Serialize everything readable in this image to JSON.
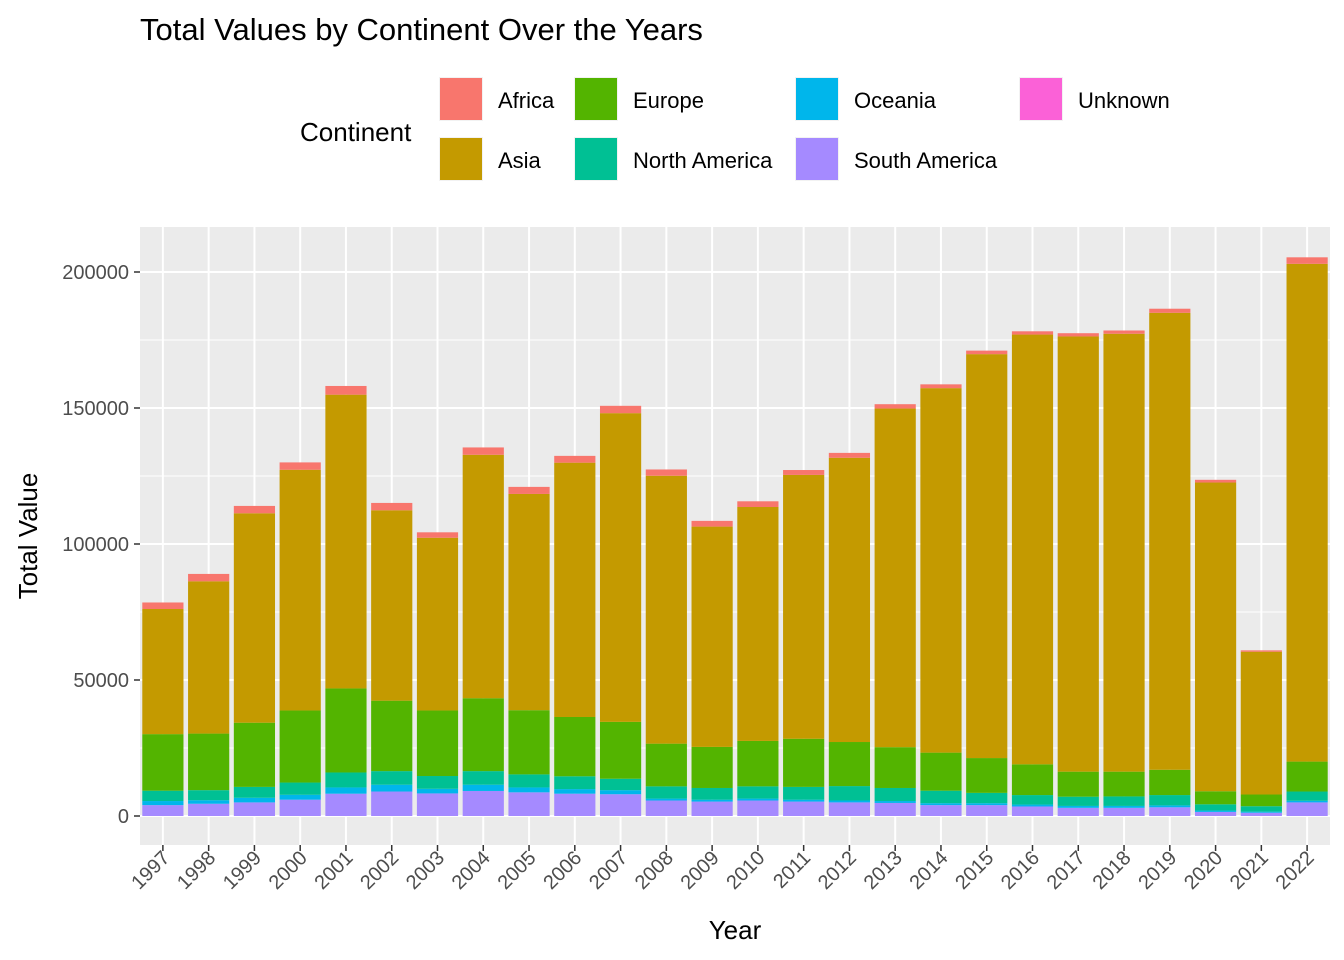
{
  "chart_data": {
    "type": "bar",
    "stacked": true,
    "title": "Total Values by Continent Over the Years",
    "xlabel": "Year",
    "ylabel": "Total Value",
    "ylim": [
      0,
      210000
    ],
    "yticks": [
      0,
      50000,
      100000,
      150000,
      200000
    ],
    "ytick_labels": [
      "0",
      "50000",
      "100000",
      "150000",
      "200000"
    ],
    "grid": true,
    "legend_title": "Continent",
    "legend_position": "top",
    "categories": [
      "1997",
      "1998",
      "1999",
      "2000",
      "2001",
      "2002",
      "2003",
      "2004",
      "2005",
      "2006",
      "2007",
      "2008",
      "2009",
      "2010",
      "2011",
      "2012",
      "2013",
      "2014",
      "2015",
      "2016",
      "2017",
      "2018",
      "2019",
      "2020",
      "2021",
      "2022"
    ],
    "series": [
      {
        "name": "South America",
        "color": "#A58AFF",
        "values": [
          4000,
          4500,
          5000,
          6000,
          8200,
          9000,
          8300,
          9200,
          8700,
          8200,
          8000,
          5700,
          5300,
          5700,
          5300,
          5000,
          4800,
          4000,
          4000,
          3500,
          3000,
          3000,
          3200,
          1500,
          1200,
          5000
        ]
      },
      {
        "name": "Oceania",
        "color": "#00B6EB",
        "values": [
          1500,
          1300,
          1700,
          1800,
          2300,
          2500,
          1700,
          2300,
          1800,
          1700,
          1500,
          700,
          700,
          700,
          700,
          700,
          700,
          700,
          700,
          700,
          700,
          700,
          700,
          500,
          400,
          600
        ]
      },
      {
        "name": "North America",
        "color": "#00C094",
        "values": [
          3800,
          3700,
          4000,
          4500,
          5500,
          5000,
          4700,
          5000,
          4800,
          4700,
          4200,
          4500,
          4300,
          4500,
          4700,
          5300,
          4800,
          4600,
          3800,
          3500,
          3400,
          3500,
          3800,
          2300,
          2000,
          3400
        ]
      },
      {
        "name": "Europe",
        "color": "#53B400",
        "values": [
          20800,
          20800,
          23600,
          26500,
          30900,
          25900,
          24100,
          26800,
          23600,
          21800,
          20900,
          15700,
          15100,
          16700,
          17700,
          16200,
          15000,
          14000,
          12800,
          11300,
          9200,
          9100,
          9300,
          4800,
          4300,
          11000
        ]
      },
      {
        "name": "Asia",
        "color": "#C49A00",
        "values": [
          46000,
          56000,
          77000,
          88500,
          108000,
          70000,
          63500,
          89500,
          79500,
          93500,
          113500,
          98500,
          81000,
          86000,
          97000,
          104500,
          124500,
          134000,
          148500,
          158000,
          160000,
          161000,
          168000,
          113500,
          52500,
          183000
        ]
      },
      {
        "name": "Africa",
        "color": "#F8766D",
        "values": [
          2400,
          2700,
          2700,
          2700,
          3200,
          2700,
          2000,
          2700,
          2600,
          2500,
          2700,
          2300,
          2100,
          2100,
          1800,
          1800,
          1600,
          1400,
          1300,
          1200,
          1200,
          1200,
          1500,
          1000,
          500,
          2400
        ]
      },
      {
        "name": "Unknown",
        "color": "#FB61D7",
        "values": [
          0,
          0,
          0,
          0,
          0,
          0,
          0,
          0,
          0,
          0,
          0,
          0,
          0,
          0,
          0,
          0,
          0,
          0,
          0,
          0,
          0,
          0,
          0,
          0,
          0,
          0
        ]
      }
    ],
    "legend_order": [
      "Africa",
      "Asia",
      "Europe",
      "North America",
      "Oceania",
      "South America",
      "Unknown"
    ]
  }
}
